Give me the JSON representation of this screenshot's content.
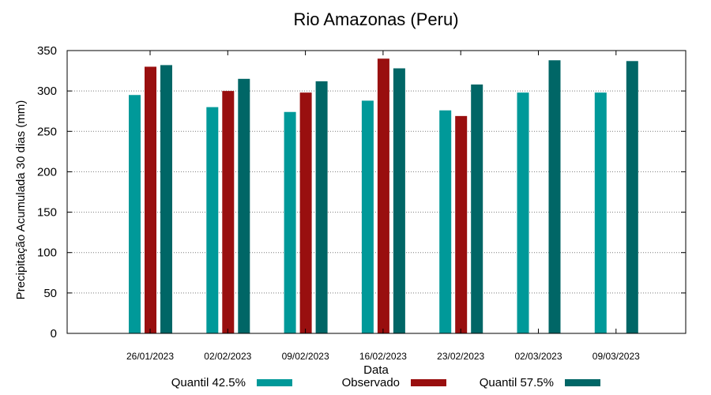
{
  "chart_data": {
    "type": "bar",
    "title": "Rio Amazonas (Peru)",
    "xlabel": "Data",
    "ylabel": "Precipitação Acumulada 30 dias (mm)",
    "ylim": [
      0,
      350
    ],
    "yticks": [
      0,
      50,
      100,
      150,
      200,
      250,
      300,
      350
    ],
    "grid": true,
    "legend_position": "bottom",
    "categories": [
      "26/01/2023",
      "02/02/2023",
      "09/02/2023",
      "16/02/2023",
      "23/02/2023",
      "02/03/2023",
      "09/03/2023"
    ],
    "series": [
      {
        "name": "Quantil 42.5%",
        "color": "#009999",
        "values": [
          295,
          280,
          274,
          288,
          276,
          298,
          298
        ]
      },
      {
        "name": "Observado",
        "color": "#990f0f",
        "values": [
          330,
          300,
          298,
          340,
          269,
          null,
          null
        ]
      },
      {
        "name": "Quantil 57.5%",
        "color": "#006666",
        "values": [
          332,
          315,
          312,
          328,
          308,
          338,
          337
        ]
      }
    ]
  }
}
